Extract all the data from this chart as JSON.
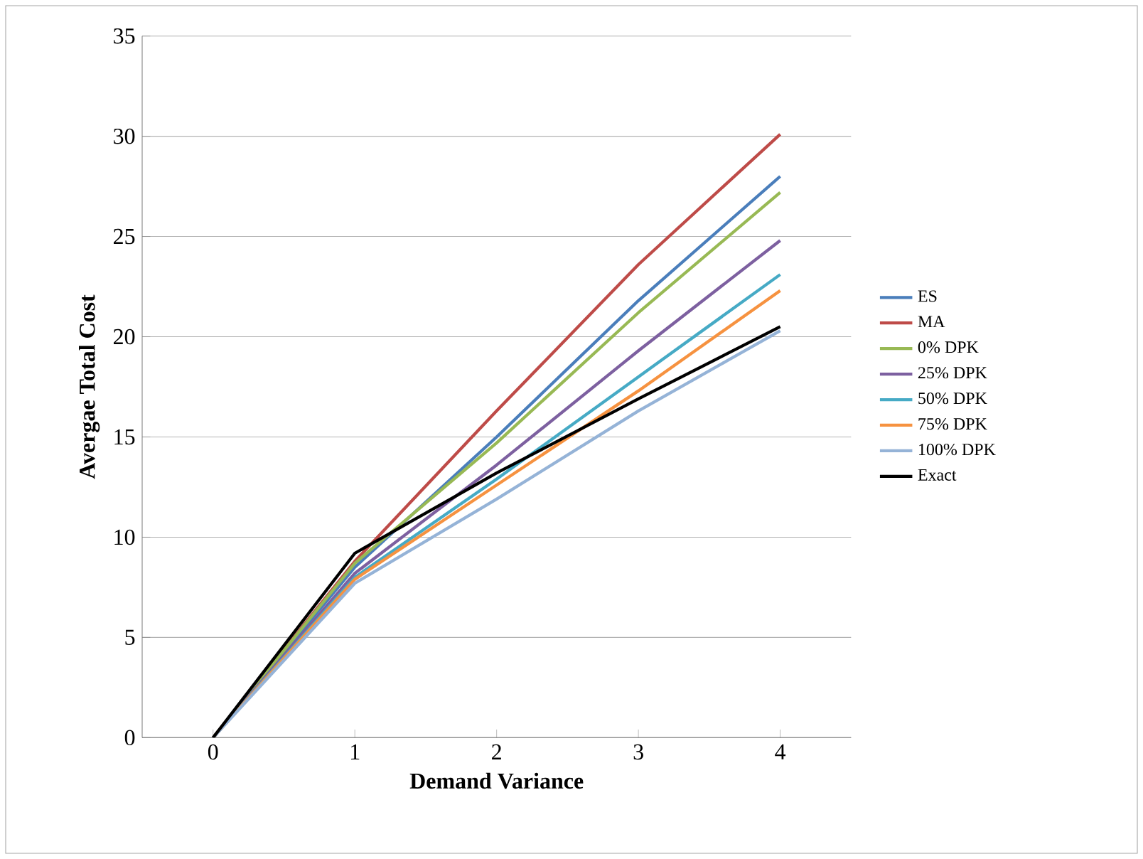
{
  "chart_data": {
    "type": "line",
    "xlabel": "Demand Variance",
    "ylabel": "Avergae Total Cost",
    "categories": [
      "0",
      "1",
      "2",
      "3",
      "4"
    ],
    "series": [
      {
        "name": "ES",
        "color": "#4a7ebb",
        "values": [
          0,
          8.5,
          15.0,
          21.8,
          28.0
        ]
      },
      {
        "name": "MA",
        "color": "#be4b48",
        "values": [
          0,
          8.8,
          16.3,
          23.6,
          30.1
        ]
      },
      {
        "name": "0% DPK",
        "color": "#98b954",
        "values": [
          0,
          8.7,
          14.7,
          21.2,
          27.2
        ]
      },
      {
        "name": "25% DPK",
        "color": "#7d60a0",
        "values": [
          0,
          8.2,
          13.6,
          19.3,
          24.8
        ]
      },
      {
        "name": "50% DPK",
        "color": "#46aac5",
        "values": [
          0,
          8.0,
          12.9,
          18.0,
          23.1
        ]
      },
      {
        "name": "75% DPK",
        "color": "#f69240",
        "values": [
          0,
          7.9,
          12.6,
          17.3,
          22.3
        ]
      },
      {
        "name": "100% DPK",
        "color": "#95b3d7",
        "values": [
          0,
          7.7,
          11.9,
          16.3,
          20.3
        ]
      },
      {
        "name": "Exact",
        "color": "#000000",
        "values": [
          0,
          9.2,
          13.2,
          16.9,
          20.5
        ]
      }
    ],
    "ylim": [
      0,
      35
    ],
    "yticks": [
      0,
      5,
      10,
      15,
      20,
      25,
      30,
      35
    ],
    "grid": "y",
    "legend": "right",
    "marker": "none",
    "line_style": "solid"
  }
}
